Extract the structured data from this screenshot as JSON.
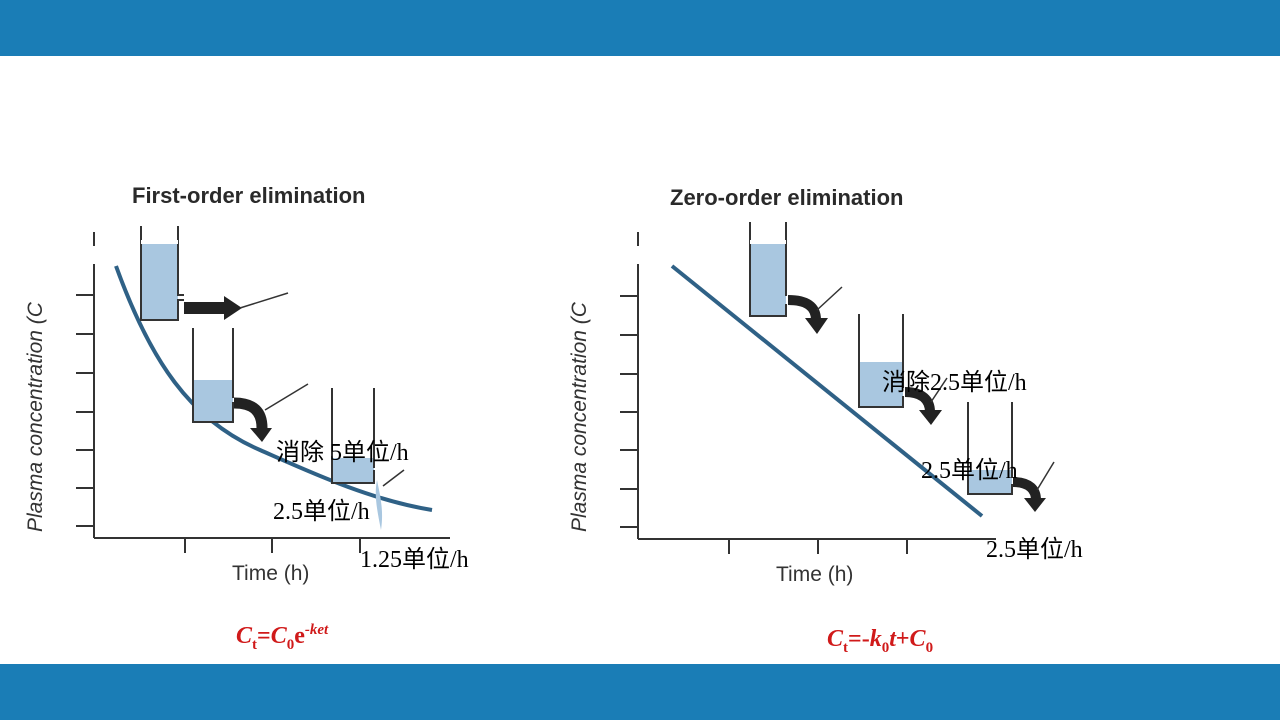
{
  "slide": {
    "band_color": "#1a7db6",
    "first_order": {
      "title": "First-order elimination",
      "y_axis": "Plasma concentration (C",
      "x_axis": "Time (h)",
      "notes": [
        "消除 5单位/h",
        "2.5单位/h",
        "1.25单位/h"
      ],
      "formula": {
        "c": "C",
        "c_sub": "t",
        "eq": "=",
        "c0": "C",
        "c0_sub": "0",
        "e": "e",
        "exp": "-ket"
      }
    },
    "zero_order": {
      "title": "Zero-order elimination",
      "y_axis": "Plasma concentration (C",
      "x_axis": "Time (h)",
      "notes": [
        "消除2.5单位/h",
        "2.5单位/h",
        "2.5单位/h"
      ],
      "formula": {
        "c": "C",
        "c_sub": "t",
        "eq": "=-",
        "k": "k",
        "k_sub": "0",
        "t": "t",
        "plus": "+",
        "c0": "C",
        "c0_sub": "0"
      }
    },
    "colors": {
      "curve": "#2f6186",
      "water": "#a9c7e0",
      "formula": "#d01a1a",
      "arrow": "#222222"
    }
  }
}
